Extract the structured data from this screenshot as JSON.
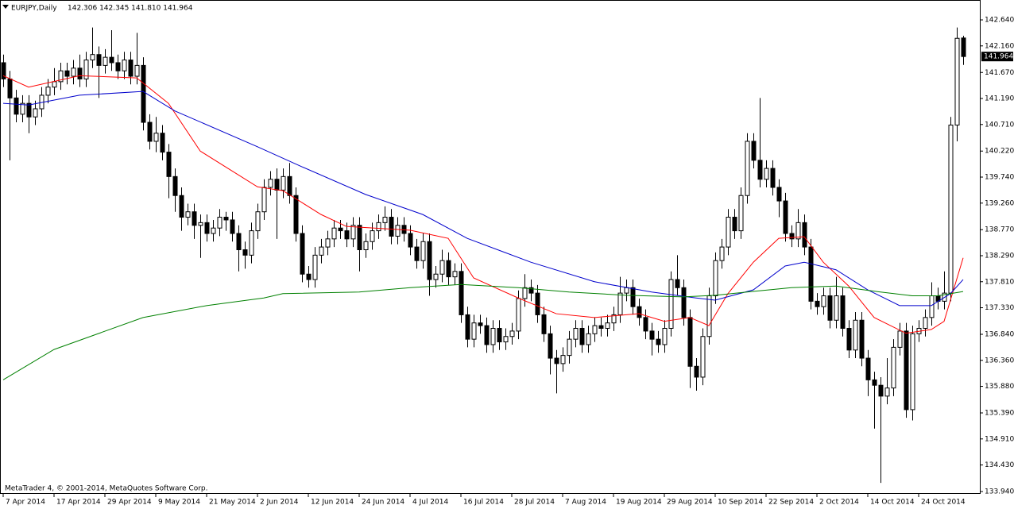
{
  "chart_data": {
    "type": "candlestick",
    "title": "EURJPY,Daily",
    "ohlc_text": "142.306 142.345 141.810 141.964",
    "footer": "MetaTrader 4, © 2001-2014, MetaQuotes Software Corp.",
    "categories": [
      "7 Apr 2014",
      null,
      null,
      null,
      null,
      null,
      null,
      null,
      "17 Apr 2014",
      null,
      null,
      null,
      null,
      null,
      null,
      null,
      "29 Apr 2014",
      null,
      null,
      null,
      null,
      null,
      null,
      null,
      "9 May 2014",
      null,
      null,
      null,
      null,
      null,
      null,
      null,
      "21 May 2014",
      null,
      null,
      null,
      null,
      null,
      null,
      null,
      "2 Jun 2014",
      null,
      null,
      null,
      null,
      null,
      null,
      null,
      "12 Jun 2014",
      null,
      null,
      null,
      null,
      null,
      null,
      null,
      "24 Jun 2014",
      null,
      null,
      null,
      null,
      null,
      null,
      null,
      "4 Jul 2014",
      null,
      null,
      null,
      null,
      null,
      null,
      null,
      "16 Jul 2014",
      null,
      null,
      null,
      null,
      null,
      null,
      null,
      "28 Jul 2014",
      null,
      null,
      null,
      null,
      null,
      null,
      null,
      "7 Aug 2014",
      null,
      null,
      null,
      null,
      null,
      null,
      null,
      "19 Aug 2014",
      null,
      null,
      null,
      null,
      null,
      null,
      null,
      "29 Aug 2014",
      null,
      null,
      null,
      null,
      null,
      null,
      null,
      "10 Sep 2014",
      null,
      null,
      null,
      null,
      null,
      null,
      null,
      "22 Sep 2014",
      null,
      null,
      null,
      null,
      null,
      null,
      null,
      "2 Oct 2014",
      null,
      null,
      null,
      null,
      null,
      null,
      null,
      "14 Oct 2014",
      null,
      null,
      null,
      null,
      null,
      null,
      null,
      "24 Oct 2014",
      null,
      null,
      null,
      null,
      null,
      null,
      null
    ],
    "open": [
      141.85,
      141.55,
      141.2,
      140.9,
      141.1,
      140.85,
      141.0,
      141.25,
      141.4,
      141.5,
      141.7,
      141.6,
      141.75,
      141.55,
      141.9,
      142.0,
      141.8,
      141.95,
      141.85,
      141.7,
      141.9,
      141.6,
      141.8,
      140.75,
      140.4,
      140.55,
      140.2,
      139.75,
      139.4,
      139.0,
      139.1,
      138.85,
      138.9,
      138.7,
      138.8,
      139.0,
      138.95,
      138.7,
      138.4,
      138.3,
      138.75,
      139.1,
      139.55,
      139.7,
      139.5,
      139.75,
      139.4,
      138.7,
      137.95,
      137.85,
      138.3,
      138.45,
      138.6,
      138.8,
      138.75,
      138.6,
      138.85,
      138.4,
      138.55,
      138.75,
      138.9,
      139.0,
      138.65,
      138.85,
      138.7,
      138.45,
      138.2,
      138.55,
      137.85,
      137.95,
      138.2,
      137.9,
      138.0,
      137.2,
      136.75,
      137.05,
      137.0,
      136.65,
      136.95,
      136.7,
      136.8,
      136.9,
      137.5,
      137.7,
      137.6,
      137.2,
      136.85,
      136.4,
      136.3,
      136.45,
      136.75,
      136.95,
      136.65,
      136.85,
      137.0,
      136.95,
      137.05,
      137.2,
      137.6,
      137.7,
      137.35,
      137.15,
      136.9,
      136.75,
      136.65,
      136.95,
      137.85,
      137.7,
      137.15,
      136.25,
      136.05,
      136.8,
      137.55,
      138.2,
      138.45,
      139.0,
      138.75,
      139.4,
      140.4,
      140.05,
      139.7,
      139.9,
      139.55,
      139.3,
      138.7,
      138.6,
      138.9,
      138.45,
      137.45,
      137.35,
      137.55,
      137.1,
      137.55,
      136.95,
      136.55,
      137.1,
      136.4,
      136.0,
      135.9,
      135.7,
      135.85,
      136.6,
      136.9,
      135.45,
      136.85,
      136.95,
      137.15,
      137.55,
      137.45,
      137.6,
      140.7,
      142.306
    ],
    "high": [
      142.0,
      141.7,
      141.35,
      141.25,
      141.25,
      141.15,
      141.4,
      141.55,
      141.75,
      141.85,
      141.85,
      141.9,
      142.0,
      142.05,
      142.5,
      142.15,
      142.1,
      142.45,
      142.0,
      142.05,
      142.05,
      142.4,
      141.95,
      140.9,
      140.85,
      140.7,
      140.35,
      139.9,
      139.55,
      139.25,
      139.25,
      139.05,
      139.05,
      138.95,
      139.15,
      139.1,
      139.1,
      138.85,
      138.55,
      138.9,
      139.25,
      139.7,
      139.85,
      139.9,
      139.9,
      140.0,
      139.55,
      138.85,
      138.1,
      138.45,
      138.6,
      138.75,
      138.95,
      138.95,
      138.9,
      139.0,
      139.0,
      138.7,
      138.9,
      139.05,
      139.2,
      139.15,
      139.0,
      139.0,
      138.85,
      138.6,
      138.7,
      138.7,
      138.1,
      138.4,
      138.35,
      138.15,
      138.15,
      137.35,
      137.2,
      137.2,
      137.15,
      137.1,
      137.1,
      136.95,
      137.05,
      137.65,
      137.95,
      137.85,
      137.75,
      137.35,
      137.0,
      136.55,
      136.6,
      136.9,
      137.1,
      137.1,
      137.0,
      137.15,
      137.15,
      137.2,
      137.35,
      137.9,
      137.85,
      137.85,
      137.5,
      137.3,
      137.05,
      136.9,
      137.1,
      138.0,
      138.3,
      137.85,
      137.3,
      136.4,
      136.95,
      137.7,
      138.35,
      138.6,
      139.15,
      139.15,
      139.55,
      140.55,
      140.55,
      141.2,
      140.05,
      140.05,
      139.7,
      139.45,
      138.85,
      139.15,
      139.05,
      138.6,
      137.6,
      137.7,
      137.7,
      137.9,
      137.7,
      137.1,
      137.25,
      137.25,
      136.55,
      136.15,
      136.05,
      136.4,
      136.75,
      137.05,
      137.05,
      137.0,
      137.1,
      137.3,
      137.8,
      137.7,
      138.0,
      140.85,
      142.5,
      142.345
    ],
    "low": [
      141.4,
      140.05,
      140.75,
      140.75,
      140.55,
      140.7,
      140.85,
      141.1,
      141.25,
      141.35,
      141.45,
      141.45,
      141.4,
      141.4,
      141.75,
      141.2,
      141.65,
      141.7,
      141.55,
      141.55,
      141.45,
      141.45,
      140.6,
      140.25,
      140.2,
      140.05,
      139.35,
      139.1,
      138.75,
      138.85,
      138.6,
      138.25,
      138.55,
      138.55,
      138.65,
      138.75,
      138.55,
      138.0,
      138.05,
      138.15,
      138.6,
      138.95,
      139.4,
      138.6,
      139.35,
      139.25,
      138.55,
      137.8,
      137.7,
      137.7,
      138.15,
      138.3,
      138.45,
      138.6,
      138.45,
      138.45,
      138.0,
      138.25,
      138.4,
      138.6,
      138.75,
      138.5,
      138.5,
      138.55,
      138.3,
      138.05,
      138.05,
      137.55,
      137.7,
      137.8,
      137.75,
      137.75,
      137.05,
      136.6,
      136.6,
      136.85,
      136.5,
      136.5,
      136.55,
      136.55,
      136.65,
      136.75,
      137.35,
      137.45,
      137.05,
      136.7,
      136.1,
      135.75,
      136.15,
      136.3,
      136.6,
      136.5,
      136.5,
      136.7,
      136.8,
      136.8,
      136.9,
      137.05,
      137.45,
      137.2,
      137.0,
      136.75,
      136.45,
      136.5,
      136.5,
      136.8,
      137.55,
      137.0,
      135.85,
      135.8,
      135.9,
      136.65,
      137.4,
      138.05,
      138.3,
      138.6,
      138.6,
      139.25,
      139.9,
      139.55,
      139.55,
      139.4,
      139.0,
      138.55,
      138.45,
      138.45,
      138.3,
      137.3,
      137.2,
      137.2,
      136.95,
      136.95,
      136.8,
      136.4,
      136.4,
      136.25,
      135.7,
      135.1,
      134.1,
      135.55,
      135.7,
      136.45,
      135.3,
      135.25,
      136.7,
      136.8,
      137.0,
      137.3,
      137.3,
      137.45,
      140.4,
      141.81
    ],
    "close": [
      141.55,
      141.2,
      140.9,
      141.1,
      140.85,
      141.0,
      141.25,
      141.4,
      141.5,
      141.7,
      141.6,
      141.75,
      141.55,
      141.9,
      142.0,
      141.8,
      141.95,
      141.85,
      141.7,
      141.9,
      141.6,
      141.8,
      140.75,
      140.4,
      140.55,
      140.2,
      139.75,
      139.4,
      139.0,
      139.1,
      138.85,
      138.9,
      138.7,
      138.8,
      139.0,
      138.95,
      138.7,
      138.4,
      138.3,
      138.75,
      139.1,
      139.55,
      139.7,
      139.5,
      139.75,
      139.4,
      138.7,
      137.95,
      137.85,
      138.3,
      138.45,
      138.6,
      138.8,
      138.75,
      138.6,
      138.85,
      138.4,
      138.55,
      138.75,
      138.9,
      139.0,
      138.65,
      138.85,
      138.7,
      138.45,
      138.2,
      138.55,
      137.85,
      137.95,
      138.2,
      137.9,
      138.0,
      137.2,
      136.75,
      137.05,
      137.0,
      136.65,
      136.95,
      136.7,
      136.8,
      136.9,
      137.5,
      137.7,
      137.6,
      137.2,
      136.85,
      136.4,
      136.3,
      136.45,
      136.75,
      136.95,
      136.65,
      136.85,
      137.0,
      136.95,
      137.05,
      137.2,
      137.6,
      137.7,
      137.35,
      137.15,
      136.9,
      136.75,
      136.65,
      136.95,
      137.85,
      137.7,
      137.15,
      136.25,
      136.05,
      136.8,
      137.55,
      138.2,
      138.45,
      139.0,
      138.75,
      139.4,
      140.4,
      140.05,
      139.7,
      139.9,
      139.55,
      139.3,
      138.7,
      138.6,
      138.9,
      138.45,
      137.45,
      137.35,
      137.55,
      137.1,
      137.55,
      136.95,
      136.55,
      137.1,
      136.4,
      136.0,
      135.9,
      135.7,
      135.85,
      136.6,
      136.9,
      135.45,
      136.85,
      136.95,
      137.15,
      137.55,
      137.45,
      137.6,
      140.7,
      142.3,
      141.964
    ],
    "bull_color": "#ffffff",
    "bear_color": "#000000",
    "lines": [
      {
        "color": "#ff0000",
        "x": [
          0,
          4,
          12,
          21,
          26,
          31,
          40,
          44,
          50,
          54,
          64,
          70,
          74,
          81,
          87,
          93,
          100,
          104,
          108,
          111,
          114,
          118,
          122,
          126,
          129,
          133,
          137,
          142,
          146,
          148,
          151
        ],
        "values": [
          141.61,
          141.4,
          141.61,
          141.57,
          141.1,
          140.22,
          139.56,
          139.49,
          139.05,
          138.83,
          138.76,
          138.61,
          137.88,
          137.51,
          137.22,
          137.15,
          137.22,
          137.08,
          137.15,
          137.0,
          137.59,
          138.17,
          138.61,
          138.64,
          138.17,
          137.73,
          137.15,
          136.86,
          136.93,
          137.08,
          138.25
        ]
      },
      {
        "color": "#0000cc",
        "x": [
          0,
          4,
          12,
          22,
          27,
          40,
          47,
          57,
          66,
          73,
          83,
          93,
          102,
          109,
          112,
          118,
          123,
          126,
          131,
          136,
          141,
          146,
          149,
          151
        ],
        "values": [
          141.1,
          141.07,
          141.25,
          141.32,
          140.96,
          140.3,
          139.93,
          139.42,
          139.05,
          138.61,
          138.17,
          137.81,
          137.62,
          137.51,
          137.47,
          137.66,
          138.1,
          138.17,
          138.03,
          137.66,
          137.37,
          137.37,
          137.59,
          137.85
        ]
      },
      {
        "color": "#008000",
        "x": [
          0,
          8,
          22,
          32,
          41,
          44,
          56,
          64,
          72,
          81,
          89,
          98,
          107,
          112,
          117,
          124,
          131,
          138,
          143,
          147,
          151
        ],
        "values": [
          136.0,
          136.56,
          137.15,
          137.37,
          137.51,
          137.59,
          137.62,
          137.7,
          137.76,
          137.7,
          137.62,
          137.56,
          137.53,
          137.56,
          137.62,
          137.7,
          137.73,
          137.62,
          137.55,
          137.55,
          137.63
        ]
      }
    ],
    "ylim": [
      133.896,
      142.948
    ],
    "yticks": [
      {
        "value": 142.64,
        "label": "142.640"
      },
      {
        "value": 142.16,
        "label": "142.160"
      },
      {
        "value": 141.67,
        "label": "141.670"
      },
      {
        "value": 141.19,
        "label": "141.190"
      },
      {
        "value": 140.71,
        "label": "140.710"
      },
      {
        "value": 140.22,
        "label": "140.220"
      },
      {
        "value": 139.74,
        "label": "139.740"
      },
      {
        "value": 139.26,
        "label": "139.260"
      },
      {
        "value": 138.77,
        "label": "138.770"
      },
      {
        "value": 138.29,
        "label": "138.290"
      },
      {
        "value": 137.81,
        "label": "137.810"
      },
      {
        "value": 137.33,
        "label": "137.330"
      },
      {
        "value": 136.84,
        "label": "136.840"
      },
      {
        "value": 136.36,
        "label": "136.360"
      },
      {
        "value": 135.88,
        "label": "135.880"
      },
      {
        "value": 135.39,
        "label": "135.390"
      },
      {
        "value": 134.91,
        "label": "134.910"
      },
      {
        "value": 134.43,
        "label": "134.430"
      },
      {
        "value": 133.94,
        "label": "133.940"
      }
    ],
    "current_price": {
      "value": 141.964,
      "label": "141.964"
    }
  }
}
